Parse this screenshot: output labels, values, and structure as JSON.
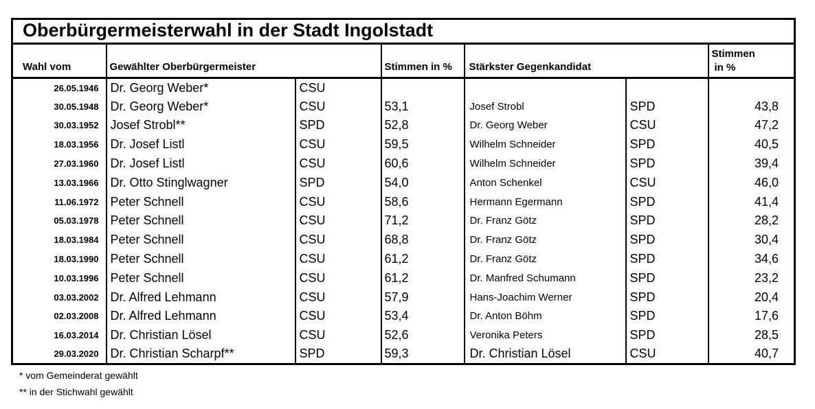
{
  "title": "Oberbürgermeisterwahl in der Stadt Ingolstadt",
  "headers": {
    "col_date": "Wahl vom",
    "col_winner": "Gewählter Oberbürgermeister",
    "col_votes": "Stimmen in %",
    "col_opponent": "Stärkster Gegenkandidat",
    "col_votes2_line1": "Stimmen",
    "col_votes2_line2": "in %"
  },
  "rows": [
    {
      "date": "26.05.1946",
      "winner": "Dr. Georg Weber*",
      "winner_party": "CSU",
      "winner_pct": "",
      "opponent": "",
      "opponent_party": "",
      "opponent_pct": ""
    },
    {
      "date": "30.05.1948",
      "winner": "Dr. Georg Weber*",
      "winner_party": "CSU",
      "winner_pct": "53,1",
      "opponent": "Josef Strobl",
      "opponent_party": "SPD",
      "opponent_pct": "43,8"
    },
    {
      "date": "30.03.1952",
      "winner": "Josef Strobl**",
      "winner_party": "SPD",
      "winner_pct": "52,8",
      "opponent": "Dr. Georg Weber",
      "opponent_party": "CSU",
      "opponent_pct": "47,2"
    },
    {
      "date": "18.03.1956",
      "winner": "Dr. Josef Listl",
      "winner_party": "CSU",
      "winner_pct": "59,5",
      "opponent": "Wilhelm Schneider",
      "opponent_party": "SPD",
      "opponent_pct": "40,5"
    },
    {
      "date": "27.03.1960",
      "winner": "Dr. Josef Listl",
      "winner_party": "CSU",
      "winner_pct": "60,6",
      "opponent": "Wilhelm Schneider",
      "opponent_party": "SPD",
      "opponent_pct": "39,4"
    },
    {
      "date": "13.03.1966",
      "winner": "Dr. Otto Stinglwagner",
      "winner_party": "SPD",
      "winner_pct": "54,0",
      "opponent": "Anton Schenkel",
      "opponent_party": "CSU",
      "opponent_pct": "46,0"
    },
    {
      "date": "11.06.1972",
      "winner": "Peter Schnell",
      "winner_party": "CSU",
      "winner_pct": "58,6",
      "opponent": "Hermann Egermann",
      "opponent_party": "SPD",
      "opponent_pct": "41,4"
    },
    {
      "date": "05.03.1978",
      "winner": "Peter Schnell",
      "winner_party": "CSU",
      "winner_pct": "71,2",
      "opponent": "Dr. Franz Götz",
      "opponent_party": "SPD",
      "opponent_pct": "28,2"
    },
    {
      "date": "18.03.1984",
      "winner": "Peter Schnell",
      "winner_party": "CSU",
      "winner_pct": "68,8",
      "opponent": "Dr. Franz Götz",
      "opponent_party": "SPD",
      "opponent_pct": "30,4"
    },
    {
      "date": "18.03.1990",
      "winner": "Peter Schnell",
      "winner_party": "CSU",
      "winner_pct": "61,2",
      "opponent": "Dr. Franz Götz",
      "opponent_party": "SPD",
      "opponent_pct": "34,6"
    },
    {
      "date": "10.03.1996",
      "winner": "Peter Schnell",
      "winner_party": "CSU",
      "winner_pct": "61,2",
      "opponent": "Dr. Manfred Schumann",
      "opponent_party": "SPD",
      "opponent_pct": "23,2"
    },
    {
      "date": "03.03.2002",
      "winner": "Dr. Alfred Lehmann",
      "winner_party": "CSU",
      "winner_pct": "57,9",
      "opponent": "Hans-Joachim Werner",
      "opponent_party": "SPD",
      "opponent_pct": "20,4"
    },
    {
      "date": "02.03.2008",
      "winner": "Dr. Alfred Lehmann",
      "winner_party": "CSU",
      "winner_pct": "53,4",
      "opponent": "Dr. Anton Böhm",
      "opponent_party": "SPD",
      "opponent_pct": "17,6"
    },
    {
      "date": "16.03.2014",
      "winner": "Dr. Christian Lösel",
      "winner_party": "CSU",
      "winner_pct": "52,6",
      "opponent": "Veronika Peters",
      "opponent_party": "SPD",
      "opponent_pct": "28,5"
    },
    {
      "date": "29.03.2020",
      "winner": "Dr. Christian Scharpf**",
      "winner_party": "SPD",
      "winner_pct": "59,3",
      "opponent": "Dr. Christian Lösel",
      "opponent_party": "CSU",
      "opponent_pct": "40,7"
    }
  ],
  "footnotes": [
    "* vom Gemeinderat gewählt",
    "** in der Stichwahl gewählt"
  ]
}
